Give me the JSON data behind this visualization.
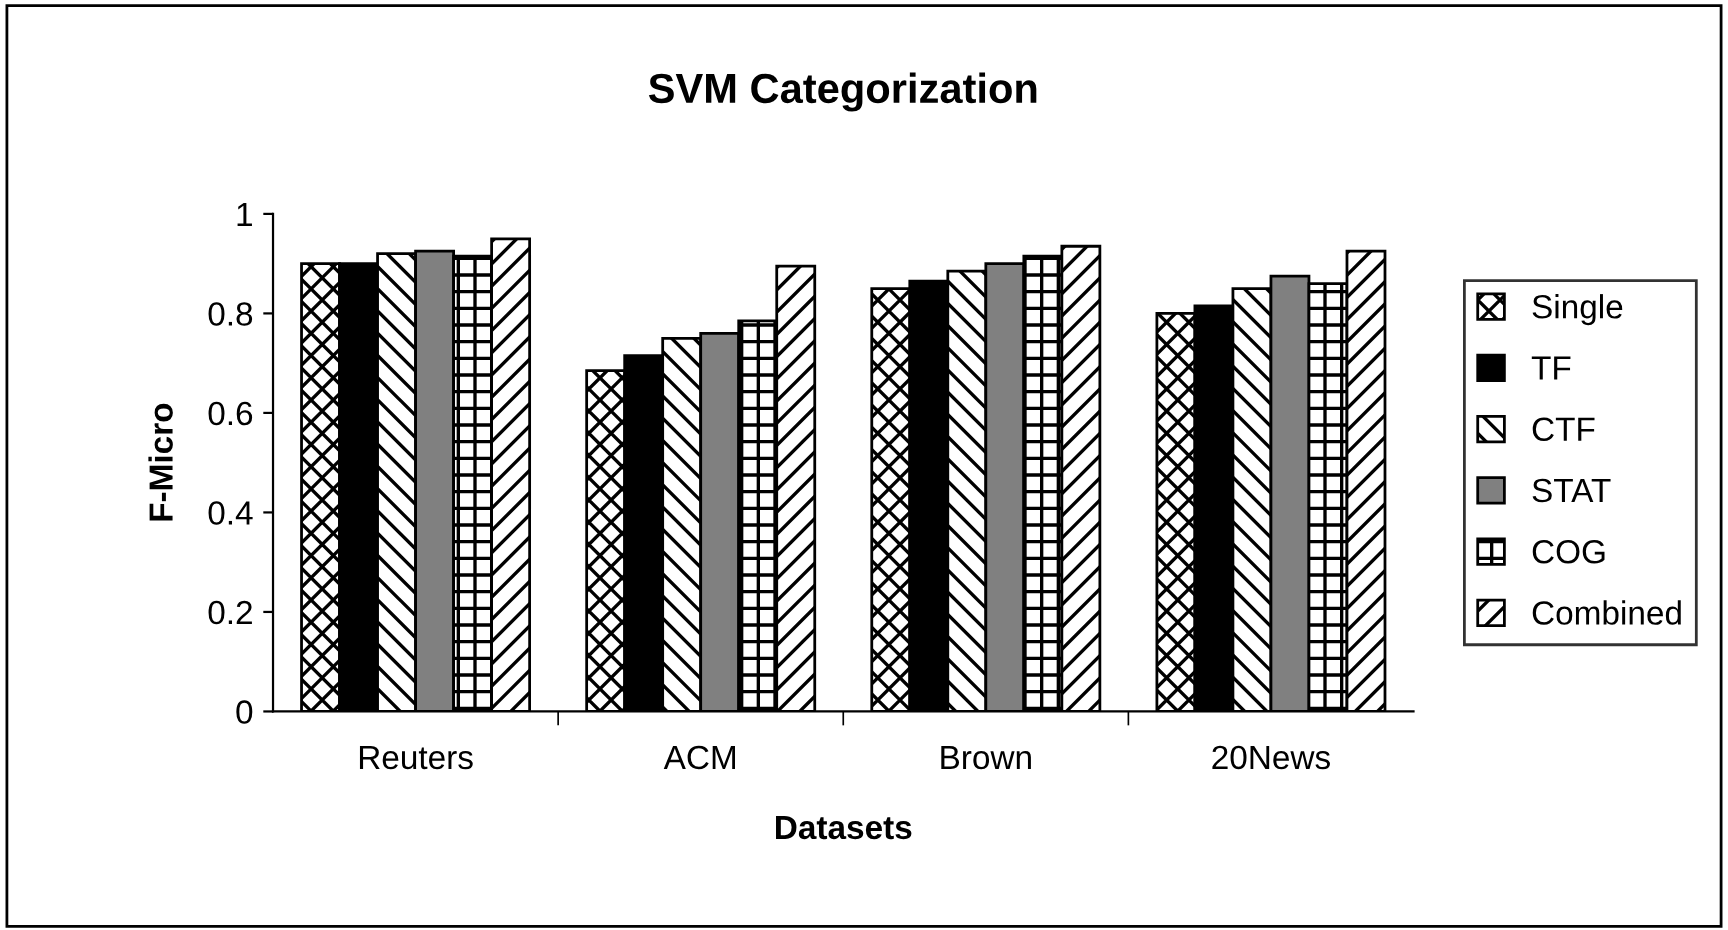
{
  "chart_data": {
    "type": "bar",
    "title": "SVM Categorization",
    "xlabel": "Datasets",
    "ylabel": "F-Micro",
    "categories": [
      "Reuters",
      "ACM",
      "Brown",
      "20News"
    ],
    "series": [
      {
        "name": "Single",
        "color": "#000000",
        "values": [
          0.9,
          0.685,
          0.85,
          0.8
        ]
      },
      {
        "name": "TF",
        "color": "#000000",
        "values": [
          0.9,
          0.715,
          0.865,
          0.815
        ]
      },
      {
        "name": "CTF",
        "color": "#000000",
        "values": [
          0.92,
          0.75,
          0.885,
          0.85
        ]
      },
      {
        "name": "STAT",
        "color": "#808080",
        "values": [
          0.925,
          0.76,
          0.9,
          0.875
        ]
      },
      {
        "name": "COG",
        "color": "#000000",
        "values": [
          0.915,
          0.785,
          0.915,
          0.86
        ]
      },
      {
        "name": "Combined",
        "color": "#000000",
        "values": [
          0.95,
          0.895,
          0.935,
          0.925
        ]
      }
    ],
    "ylim": [
      0,
      1
    ],
    "yticks": [
      0,
      0.2,
      0.4,
      0.6,
      0.8,
      1
    ],
    "grid": false,
    "legend": "right"
  }
}
